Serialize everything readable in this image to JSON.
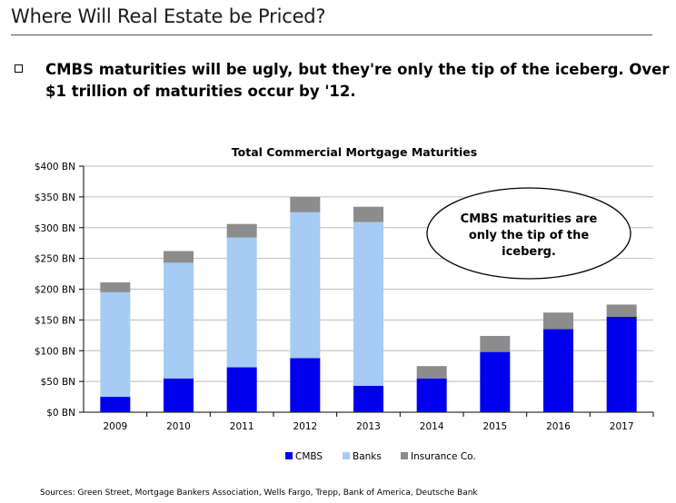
{
  "slide": {
    "title": "Where Will Real Estate be Priced?",
    "bullet": "CMBS maturities will be ugly, but they're only the tip of the iceberg. Over $1 trillion of maturities occur by '12.",
    "sources": "Sources: Green Street, Mortgage Bankers Association, Wells Fargo, Trepp, Bank of America, Deutsche Bank"
  },
  "callout": {
    "line1": "CMBS maturities are",
    "line2": "only the tip of the",
    "line3": "iceberg."
  },
  "chart_data": {
    "type": "bar",
    "stacked": true,
    "title": "Total Commercial Mortgage Maturities",
    "xlabel": "",
    "ylabel": "",
    "categories": [
      "2009",
      "2010",
      "2011",
      "2012",
      "2013",
      "2014",
      "2015",
      "2016",
      "2017"
    ],
    "series": [
      {
        "name": "CMBS",
        "color": "#0000ee",
        "values": [
          25,
          55,
          73,
          88,
          43,
          55,
          98,
          135,
          155
        ]
      },
      {
        "name": "Banks",
        "color": "#a6cbf5",
        "values": [
          170,
          188,
          211,
          237,
          266,
          0,
          0,
          0,
          0
        ]
      },
      {
        "name": "Insurance Co.",
        "color": "#8c8c8c",
        "values": [
          16,
          19,
          22,
          25,
          25,
          20,
          26,
          27,
          20
        ]
      }
    ],
    "yticks": [
      "$0 BN",
      "$50 BN",
      "$100 BN",
      "$150 BN",
      "$200 BN",
      "$250 BN",
      "$300 BN",
      "$350 BN",
      "$400 BN"
    ],
    "ylim": [
      0,
      400
    ],
    "grid": true,
    "legend_position": "bottom"
  }
}
